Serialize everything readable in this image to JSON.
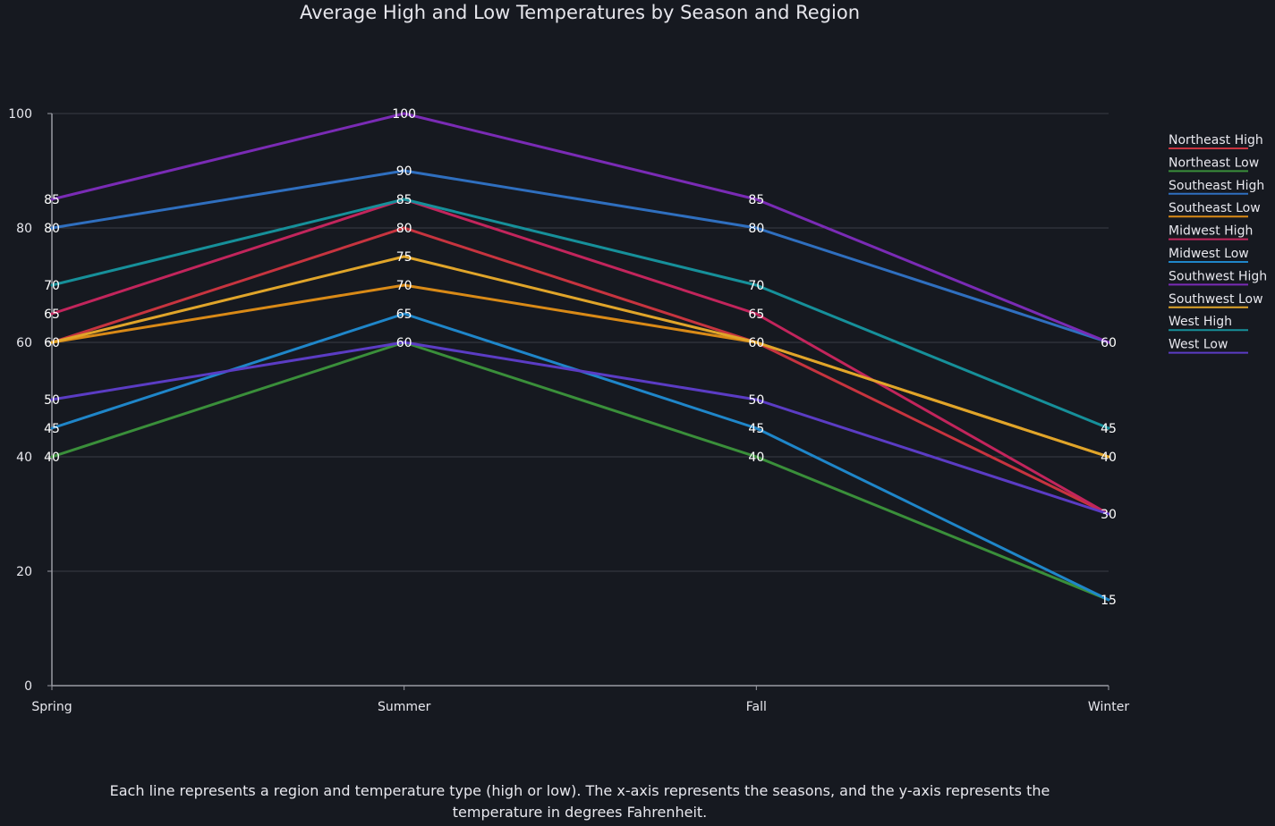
{
  "title": "Average High and Low Temperatures by Season and Region",
  "caption": "Each line represents a region and temperature type (high or low). The x-axis represents the seasons, and the y-axis represents the temperature in degrees Fahrenheit.",
  "colors": {
    "background": "#161920",
    "grid": "#3a3d46",
    "axis": "#9a9ca4",
    "text": "#e8e8ee"
  },
  "chart_data": {
    "type": "line",
    "title": "Average High and Low Temperatures by Season and Region",
    "xlabel": "",
    "ylabel": "",
    "categories": [
      "Spring",
      "Summer",
      "Fall",
      "Winter"
    ],
    "ylim": [
      0,
      100
    ],
    "yticks": [
      0,
      20,
      40,
      60,
      80,
      100
    ],
    "grid": true,
    "legend_position": "right",
    "series": [
      {
        "name": "Northeast High",
        "color": "#c7343f",
        "values": [
          60,
          80,
          60,
          30
        ]
      },
      {
        "name": "Northeast Low",
        "color": "#3a8f3a",
        "values": [
          40,
          60,
          40,
          15
        ]
      },
      {
        "name": "Southeast High",
        "color": "#2f6fbf",
        "values": [
          80,
          90,
          80,
          60
        ]
      },
      {
        "name": "Southeast Low",
        "color": "#d98a17",
        "values": [
          60,
          70,
          60,
          40
        ]
      },
      {
        "name": "Midwest High",
        "color": "#c2255c",
        "values": [
          65,
          85,
          65,
          30
        ]
      },
      {
        "name": "Midwest Low",
        "color": "#1f86c9",
        "values": [
          45,
          65,
          45,
          15
        ]
      },
      {
        "name": "Southwest High",
        "color": "#7a2bb5",
        "values": [
          85,
          100,
          85,
          60
        ]
      },
      {
        "name": "Southwest Low",
        "color": "#e0a52a",
        "values": [
          60,
          75,
          60,
          40
        ]
      },
      {
        "name": "West High",
        "color": "#16909a",
        "values": [
          70,
          85,
          70,
          45
        ]
      },
      {
        "name": "West Low",
        "color": "#5b3cc4",
        "values": [
          50,
          60,
          50,
          30
        ]
      }
    ]
  }
}
